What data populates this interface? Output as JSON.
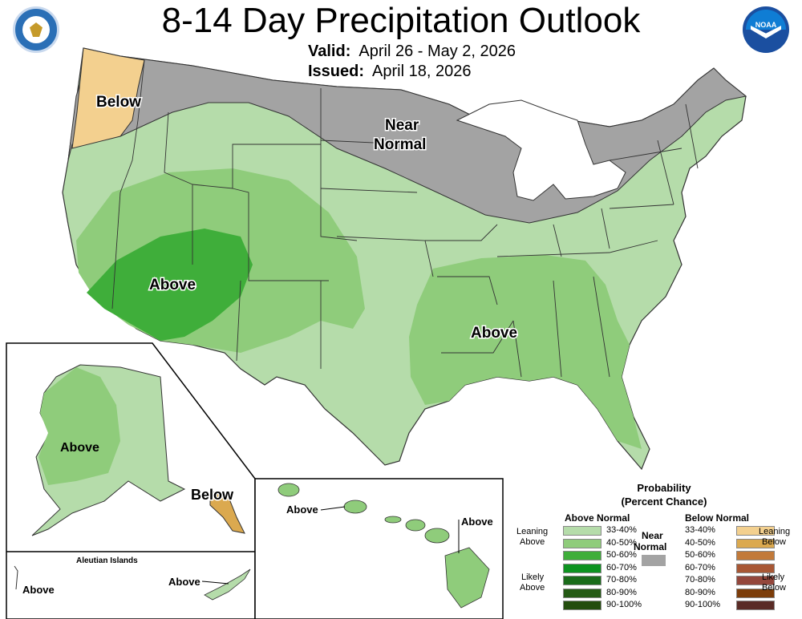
{
  "header": {
    "title": "8-14 Day Precipitation Outlook",
    "valid_label": "Valid:",
    "valid_value": "April 26 - May 2, 2026",
    "issued_label": "Issued:",
    "issued_value": "April 18, 2026"
  },
  "logos": {
    "left": "doc-seal-icon",
    "right": "noaa-logo-icon"
  },
  "map_labels": {
    "northwest": "Below",
    "north_central_line1": "Near",
    "north_central_line2": "Normal",
    "southwest": "Above",
    "southeast": "Above"
  },
  "alaska": {
    "mainland": "Above",
    "panhandle": "Below"
  },
  "aleutians": {
    "title": "Aleutian Islands",
    "left": "Above",
    "right": "Above"
  },
  "hawaii": {
    "left": "Above",
    "right": "Above"
  },
  "legend": {
    "title_line1": "Probability",
    "title_line2": "(Percent Chance)",
    "above_header": "Above Normal",
    "below_header": "Below Normal",
    "near_line1": "Near",
    "near_line2": "Normal",
    "leaning_above_1": "Leaning",
    "leaning_above_2": "Above",
    "likely_above_1": "Likely",
    "likely_above_2": "Above",
    "leaning_below_1": "Leaning",
    "leaning_below_2": "Below",
    "likely_below_1": "Likely",
    "likely_below_2": "Below",
    "above_levels": [
      {
        "label": "33-40%",
        "color": "#b5dcaa"
      },
      {
        "label": "40-50%",
        "color": "#8fcc7b"
      },
      {
        "label": "50-60%",
        "color": "#3fae3a"
      },
      {
        "label": "60-70%",
        "color": "#0d9320"
      },
      {
        "label": "70-80%",
        "color": "#1a6b1a"
      },
      {
        "label": "80-90%",
        "color": "#245a14"
      },
      {
        "label": "90-100%",
        "color": "#234d0d"
      }
    ],
    "below_levels": [
      {
        "label": "33-40%",
        "color": "#f3d08f"
      },
      {
        "label": "40-50%",
        "color": "#dba94f"
      },
      {
        "label": "50-60%",
        "color": "#c27a3a"
      },
      {
        "label": "60-70%",
        "color": "#a85734"
      },
      {
        "label": "70-80%",
        "color": "#94473c"
      },
      {
        "label": "80-90%",
        "color": "#7c3d0a"
      },
      {
        "label": "90-100%",
        "color": "#5a2b26"
      }
    ],
    "near_color": "#a3a3a3"
  },
  "colors": {
    "near_normal": "#a3a3a3",
    "above_33_40": "#b5dcaa",
    "above_40_50": "#8fcc7b",
    "above_50_60": "#3fae3a",
    "below_33_40": "#f3d08f",
    "below_40_50": "#dba94f"
  }
}
